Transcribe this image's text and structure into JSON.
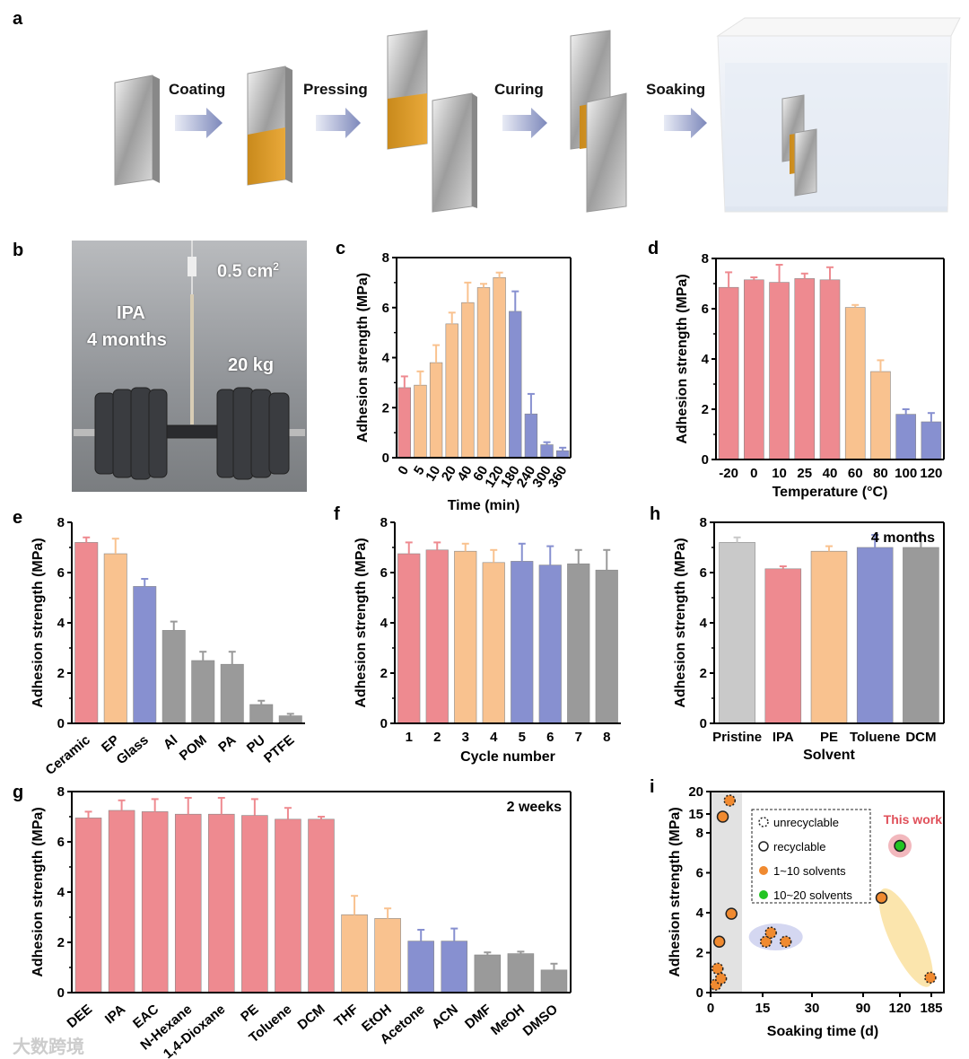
{
  "panel_labels": {
    "a": "a",
    "b": "b",
    "c": "c",
    "d": "d",
    "e": "e",
    "f": "f",
    "g": "g",
    "h": "h",
    "i": "i"
  },
  "panel_a": {
    "steps": [
      "Coating",
      "Pressing",
      "Curing",
      "Soaking"
    ]
  },
  "panel_b": {
    "area": "0.5 cm",
    "area_sup": "2",
    "solvent": "IPA",
    "duration": "4 months",
    "load": "20 kg"
  },
  "colors": {
    "red": "#ee8a90",
    "orange": "#f9c28f",
    "blue": "#8790d0",
    "gray": "#9a9a9a",
    "lightgray": "#c9c9c9",
    "green": "#22c422",
    "point_orange": "#f08a30",
    "this_work": "#e0505a"
  },
  "watermark": "大数跨境",
  "chart_data": [
    {
      "id": "c",
      "type": "bar",
      "title": "",
      "xlabel": "Time (min)",
      "ylabel": "Adhesion strength (MPa)",
      "ylim": [
        0,
        8
      ],
      "yticks": [
        0,
        2,
        4,
        6,
        8
      ],
      "categories": [
        "0",
        "5",
        "10",
        "20",
        "40",
        "60",
        "120",
        "180",
        "240",
        "300",
        "360"
      ],
      "values": [
        2.8,
        2.9,
        3.8,
        5.35,
        6.2,
        6.8,
        7.2,
        5.85,
        1.75,
        0.52,
        0.28
      ],
      "errors": [
        0.45,
        0.55,
        0.7,
        0.45,
        0.8,
        0.15,
        0.2,
        0.8,
        0.8,
        0.1,
        0.12
      ],
      "bar_colors": [
        "red",
        "orange",
        "orange",
        "orange",
        "orange",
        "orange",
        "orange",
        "blue",
        "blue",
        "blue",
        "blue"
      ]
    },
    {
      "id": "d",
      "type": "bar",
      "xlabel": "Temperature (°C)",
      "ylabel": "Adhesion strength (MPa)",
      "ylim": [
        0,
        8
      ],
      "yticks": [
        0,
        2,
        4,
        6,
        8
      ],
      "categories": [
        "-20",
        "0",
        "10",
        "25",
        "40",
        "60",
        "80",
        "100",
        "120"
      ],
      "values": [
        6.85,
        7.15,
        7.05,
        7.2,
        7.15,
        6.05,
        3.5,
        1.8,
        1.5
      ],
      "errors": [
        0.6,
        0.1,
        0.7,
        0.2,
        0.5,
        0.1,
        0.45,
        0.2,
        0.35
      ],
      "bar_colors": [
        "red",
        "red",
        "red",
        "red",
        "red",
        "orange",
        "orange",
        "blue",
        "blue"
      ]
    },
    {
      "id": "e",
      "type": "bar",
      "xlabel": "",
      "ylabel": "Adhesion strength (MPa)",
      "ylim": [
        0,
        8
      ],
      "yticks": [
        0,
        2,
        4,
        6,
        8
      ],
      "categories": [
        "Ceramic",
        "EP",
        "Glass",
        "Al",
        "POM",
        "PA",
        "PU",
        "PTFE"
      ],
      "values": [
        7.2,
        6.75,
        5.45,
        3.7,
        2.5,
        2.35,
        0.75,
        0.3
      ],
      "errors": [
        0.2,
        0.6,
        0.3,
        0.35,
        0.35,
        0.5,
        0.15,
        0.08
      ],
      "bar_colors": [
        "red",
        "orange",
        "blue",
        "gray",
        "gray",
        "gray",
        "gray",
        "gray"
      ]
    },
    {
      "id": "f",
      "type": "bar",
      "xlabel": "Cycle number",
      "ylabel": "Adhesion strength (MPa)",
      "ylim": [
        0,
        8
      ],
      "yticks": [
        0,
        2,
        4,
        6,
        8
      ],
      "categories": [
        "1",
        "2",
        "3",
        "4",
        "5",
        "6",
        "7",
        "8"
      ],
      "values": [
        6.75,
        6.9,
        6.85,
        6.4,
        6.45,
        6.3,
        6.35,
        6.1
      ],
      "errors": [
        0.45,
        0.3,
        0.3,
        0.5,
        0.7,
        0.75,
        0.55,
        0.8
      ],
      "bar_colors": [
        "red",
        "red",
        "orange",
        "orange",
        "blue",
        "blue",
        "gray",
        "gray"
      ]
    },
    {
      "id": "h",
      "type": "bar",
      "xlabel": "Solvent",
      "ylabel": "Adhesion strength (MPa)",
      "annotation": "4 months",
      "ylim": [
        0,
        8
      ],
      "yticks": [
        0,
        2,
        4,
        6,
        8
      ],
      "categories": [
        "Pristine",
        "IPA",
        "PE",
        "Toluene",
        "DCM"
      ],
      "values": [
        7.2,
        6.15,
        6.85,
        7.0,
        7.0
      ],
      "errors": [
        0.2,
        0.1,
        0.2,
        0.5,
        0.5
      ],
      "bar_colors": [
        "lightgray",
        "red",
        "orange",
        "blue",
        "gray"
      ]
    },
    {
      "id": "g",
      "type": "bar",
      "xlabel": "",
      "ylabel": "Adhesion strength (MPa)",
      "annotation": "2 weeks",
      "ylim": [
        0,
        8
      ],
      "yticks": [
        0,
        2,
        4,
        6,
        8
      ],
      "categories": [
        "DEE",
        "IPA",
        "EAC",
        "N-Hexane",
        "1,4-Dioxane",
        "PE",
        "Toluene",
        "DCM",
        "THF",
        "EtOH",
        "Acetone",
        "ACN",
        "DMF",
        "MeOH",
        "DMSO"
      ],
      "values": [
        6.95,
        7.25,
        7.2,
        7.1,
        7.1,
        7.05,
        6.9,
        6.9,
        3.1,
        2.95,
        2.05,
        2.05,
        1.5,
        1.55,
        0.9
      ],
      "errors": [
        0.25,
        0.4,
        0.5,
        0.65,
        0.65,
        0.65,
        0.45,
        0.1,
        0.75,
        0.4,
        0.45,
        0.5,
        0.1,
        0.08,
        0.25
      ],
      "bar_colors": [
        "red",
        "red",
        "red",
        "red",
        "red",
        "red",
        "red",
        "red",
        "orange",
        "orange",
        "blue",
        "blue",
        "gray",
        "gray",
        "gray"
      ]
    },
    {
      "id": "i",
      "type": "scatter",
      "xlabel": "Soaking time (d)",
      "ylabel": "Adhesion strength (MPa)",
      "xticks": [
        0,
        15,
        30,
        90,
        120,
        185
      ],
      "yticks": [
        0,
        2,
        4,
        6,
        8,
        15,
        20
      ],
      "legend": [
        "unrecyclable",
        "recyclable",
        "1~10 solvents",
        "10~20 solvents"
      ],
      "legend_position": "top-center",
      "annotation": "This work",
      "points": [
        {
          "x": 1.5,
          "y": 0.4,
          "recyclable": false,
          "solvents": "1~10"
        },
        {
          "x": 2,
          "y": 1.2,
          "recyclable": false,
          "solvents": "1~10"
        },
        {
          "x": 3,
          "y": 0.7,
          "recyclable": false,
          "solvents": "1~10"
        },
        {
          "x": 2.5,
          "y": 2.55,
          "recyclable": true,
          "solvents": "1~10"
        },
        {
          "x": 3.5,
          "y": 14,
          "recyclable": true,
          "solvents": "1~10"
        },
        {
          "x": 5.5,
          "y": 18,
          "recyclable": false,
          "solvents": "1~10"
        },
        {
          "x": 6,
          "y": 3.95,
          "recyclable": true,
          "solvents": "1~10"
        },
        {
          "x": 16,
          "y": 2.55,
          "recyclable": false,
          "solvents": "1~10"
        },
        {
          "x": 17.5,
          "y": 3.0,
          "recyclable": false,
          "solvents": "1~10"
        },
        {
          "x": 22,
          "y": 2.55,
          "recyclable": false,
          "solvents": "1~10"
        },
        {
          "x": 105,
          "y": 4.75,
          "recyclable": true,
          "solvents": "1~10"
        },
        {
          "x": 120,
          "y": 7.35,
          "recyclable": true,
          "solvents": "10~20"
        },
        {
          "x": 183,
          "y": 0.75,
          "recyclable": false,
          "solvents": "1~10"
        }
      ]
    }
  ]
}
